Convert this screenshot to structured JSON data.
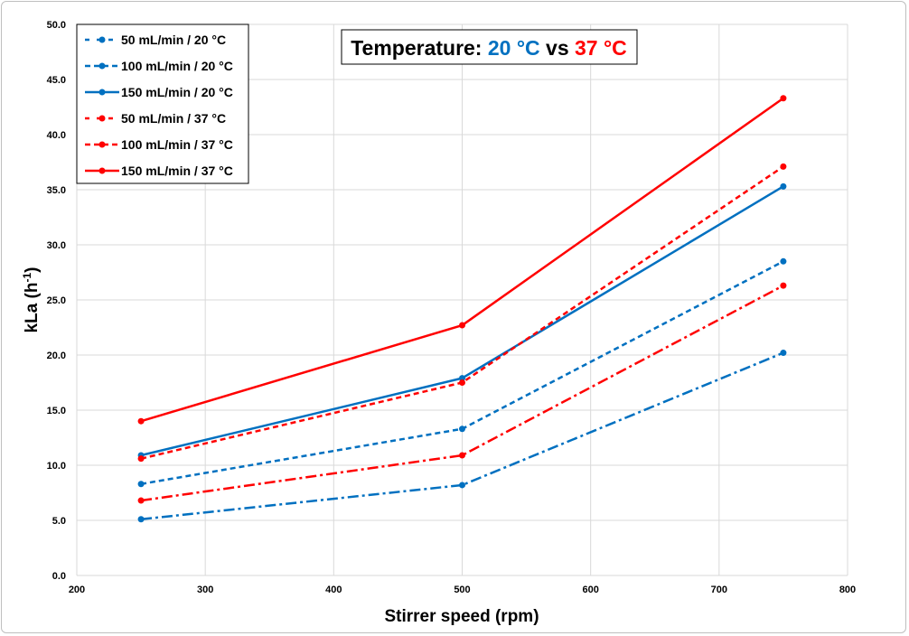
{
  "chart_data": {
    "type": "line",
    "title_parts": [
      {
        "text": "Temperature: ",
        "color": "#000000"
      },
      {
        "text": "20 °C",
        "color": "#0070C0"
      },
      {
        "text": " vs ",
        "color": "#000000"
      },
      {
        "text": "37 °C",
        "color": "#FF0000"
      }
    ],
    "xlabel": "Stirrer speed (rpm)",
    "ylabel": "kLa (h-1)",
    "ylabel_main": "kLa (h",
    "ylabel_sup": "-1",
    "ylabel_close": ")",
    "xlim": [
      200,
      800
    ],
    "ylim": [
      0,
      50
    ],
    "xticks": [
      200,
      300,
      400,
      500,
      600,
      700,
      800
    ],
    "yticks": [
      "0.0",
      "5.0",
      "10.0",
      "15.0",
      "20.0",
      "25.0",
      "30.0",
      "35.0",
      "40.0",
      "45.0",
      "50.0"
    ],
    "grid": true,
    "legend_placement": "top-left",
    "x": [
      250,
      500,
      750
    ],
    "series": [
      {
        "name": "50 mL/min / 20 °C",
        "color": "#0070C0",
        "style": "dashdot",
        "values": [
          5.1,
          8.2,
          20.2
        ]
      },
      {
        "name": "100 mL/min / 20 °C",
        "color": "#0070C0",
        "style": "dashed",
        "values": [
          8.3,
          13.3,
          28.5
        ]
      },
      {
        "name": "150 mL/min / 20 °C",
        "color": "#0070C0",
        "style": "solid",
        "values": [
          10.9,
          17.9,
          35.3
        ]
      },
      {
        "name": "50 mL/min / 37 °C",
        "color": "#FF0000",
        "style": "dashdot",
        "values": [
          6.8,
          10.9,
          26.3
        ]
      },
      {
        "name": "100 mL/min / 37 °C",
        "color": "#FF0000",
        "style": "dashed",
        "values": [
          10.6,
          17.5,
          37.1
        ]
      },
      {
        "name": "150 mL/min / 37 °C",
        "color": "#FF0000",
        "style": "solid",
        "values": [
          14.0,
          22.7,
          43.3
        ]
      }
    ]
  }
}
